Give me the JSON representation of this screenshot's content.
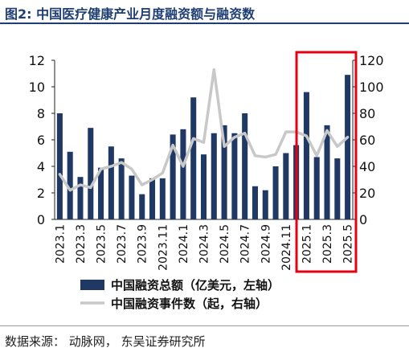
{
  "header": {
    "title": "图2:  中国医疗健康产业月度融资额与融资数"
  },
  "footer": {
    "source": "数据来源：  动脉网，  东吴证券研究所"
  },
  "chart_data": {
    "type": "bar",
    "categories": [
      "2023.1",
      "2023.2",
      "2023.3",
      "2023.4",
      "2023.5",
      "2023.6",
      "2023.7",
      "2023.8",
      "2023.9",
      "2023.10",
      "2023.11",
      "2023.12",
      "2024.1",
      "2024.2",
      "2024.3",
      "2024.4",
      "2024.5",
      "2024.6",
      "2024.7",
      "2024.8",
      "2024.9",
      "2024.10",
      "2024.11",
      "2024.12",
      "2025.1",
      "2025.2",
      "2025.3",
      "2025.4",
      "2025.5"
    ],
    "x_tick_labels": [
      "2023.1",
      "2023.3",
      "2023.5",
      "2023.7",
      "2023.9",
      "2023.11",
      "2024.1",
      "2024.3",
      "2024.5",
      "2024.7",
      "2024.9",
      "2024.11",
      "2025.1",
      "2025.3",
      "2025.5"
    ],
    "series": [
      {
        "name": "中国融资总额（亿美元，左轴）",
        "type": "bar",
        "axis": "left",
        "color": "#1f3864",
        "values": [
          8.0,
          5.1,
          3.2,
          6.9,
          3.9,
          5.5,
          4.6,
          3.3,
          1.9,
          3.1,
          3.1,
          6.4,
          6.8,
          9.2,
          4.9,
          6.5,
          7.1,
          6.5,
          8.0,
          2.5,
          2.2,
          4.0,
          5.0,
          5.6,
          9.6,
          4.7,
          7.1,
          4.6,
          10.9
        ]
      },
      {
        "name": "中国融资事件数（起，右轴）",
        "type": "line",
        "axis": "right",
        "color": "#c8c8c8",
        "values": [
          34,
          22,
          26,
          24,
          38,
          40,
          43,
          38,
          26,
          30,
          35,
          56,
          40,
          61,
          58,
          113,
          55,
          62,
          65,
          48,
          47,
          49,
          66,
          66,
          63,
          48,
          67,
          55,
          62
        ]
      }
    ],
    "ylim_left": [
      0,
      12
    ],
    "yticks_left": [
      0,
      2,
      4,
      6,
      8,
      10,
      12
    ],
    "ylim_right": [
      0,
      120
    ],
    "yticks_right": [
      0,
      20,
      40,
      60,
      80,
      100,
      120
    ],
    "highlight": {
      "from": "2025.1",
      "to": "2025.5",
      "color": "#e60012"
    },
    "legend_position": "bottom",
    "grid": false
  }
}
